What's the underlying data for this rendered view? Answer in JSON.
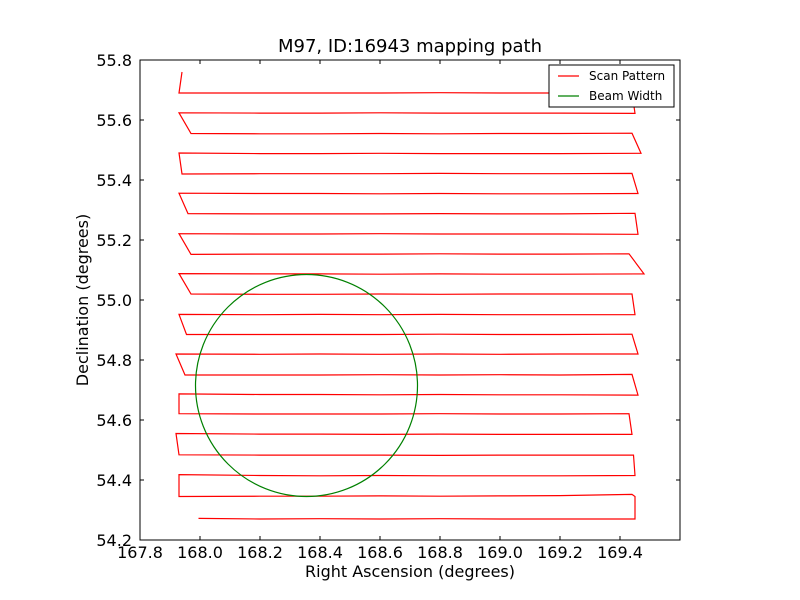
{
  "chart_data": {
    "type": "line",
    "title": "M97, ID:16943 mapping path",
    "xlabel": "Right Ascension (degrees)",
    "ylabel": "Declination (degrees)",
    "xlim": [
      167.8,
      169.6
    ],
    "ylim": [
      54.2,
      55.8
    ],
    "x_ticks": [
      "167.8",
      "168.0",
      "168.2",
      "168.4",
      "168.6",
      "168.8",
      "169.0",
      "169.2",
      "169.4"
    ],
    "y_ticks": [
      "54.2",
      "54.4",
      "54.6",
      "54.8",
      "55.0",
      "55.2",
      "55.4",
      "55.6",
      "55.8"
    ],
    "grid": false,
    "legend_position": "top-right",
    "series": [
      {
        "name": "Scan Pattern",
        "color": "#ff0000",
        "kind": "line",
        "x": [
          167.995,
          168.2,
          168.4,
          168.6,
          168.8,
          169.0,
          169.2,
          169.45,
          169.45,
          169.44,
          169.2,
          169.0,
          168.8,
          168.6,
          168.4,
          168.2,
          167.93,
          167.93,
          168.2,
          168.4,
          168.6,
          168.8,
          169.0,
          169.2,
          169.45,
          169.445,
          169.2,
          169.0,
          168.8,
          168.6,
          168.4,
          168.2,
          167.93,
          167.92,
          168.2,
          168.4,
          168.6,
          168.8,
          169.0,
          169.2,
          169.44,
          169.43,
          169.2,
          169.0,
          168.8,
          168.6,
          168.4,
          168.2,
          167.93,
          167.93,
          168.2,
          168.4,
          168.6,
          168.8,
          169.0,
          169.2,
          169.46,
          169.44,
          169.2,
          169.0,
          168.8,
          168.6,
          168.4,
          168.2,
          167.95,
          167.92,
          168.2,
          168.4,
          168.6,
          168.8,
          169.0,
          169.2,
          169.46,
          169.44,
          169.2,
          169.0,
          168.8,
          168.6,
          168.4,
          168.2,
          167.955,
          167.93,
          168.2,
          168.4,
          168.6,
          168.8,
          169.0,
          169.2,
          169.45,
          169.44,
          169.2,
          169.0,
          168.8,
          168.6,
          168.4,
          168.2,
          167.97,
          167.93,
          168.2,
          168.4,
          168.6,
          168.8,
          169.0,
          169.2,
          169.48,
          169.43,
          169.2,
          169.0,
          168.8,
          168.6,
          168.4,
          168.2,
          167.97,
          167.93,
          168.2,
          168.4,
          168.6,
          168.8,
          169.0,
          169.2,
          169.46,
          169.45,
          169.2,
          169.0,
          168.8,
          168.6,
          168.4,
          168.2,
          167.96,
          167.93,
          168.2,
          168.4,
          168.6,
          168.8,
          169.0,
          169.2,
          169.46,
          169.44,
          169.2,
          169.0,
          168.8,
          168.6,
          168.4,
          168.2,
          167.94,
          167.93,
          168.2,
          168.4,
          168.6,
          168.8,
          169.0,
          169.2,
          169.47,
          169.44,
          169.2,
          169.0,
          168.8,
          168.6,
          168.4,
          168.2,
          167.97,
          167.93,
          168.2,
          168.4,
          168.6,
          168.8,
          169.0,
          169.2,
          169.45,
          169.44,
          169.2,
          169.0,
          168.8,
          168.6,
          168.4,
          168.2,
          167.93,
          167.94
        ],
        "y": [
          54.272,
          54.27,
          54.271,
          54.27,
          54.271,
          54.27,
          54.27,
          54.27,
          54.345,
          54.352,
          54.348,
          54.347,
          54.346,
          54.347,
          54.346,
          54.346,
          54.345,
          54.418,
          54.415,
          54.414,
          54.415,
          54.414,
          54.414,
          54.414,
          54.415,
          54.483,
          54.483,
          54.483,
          54.482,
          54.483,
          54.483,
          54.483,
          54.484,
          54.555,
          54.553,
          54.553,
          54.552,
          54.553,
          54.552,
          54.552,
          54.552,
          54.621,
          54.62,
          54.62,
          54.621,
          54.62,
          54.62,
          54.62,
          54.621,
          54.687,
          54.685,
          54.685,
          54.684,
          54.685,
          54.684,
          54.684,
          54.683,
          54.752,
          54.75,
          54.751,
          54.75,
          54.751,
          54.75,
          54.75,
          54.75,
          54.82,
          54.819,
          54.82,
          54.819,
          54.82,
          54.819,
          54.82,
          54.82,
          54.886,
          54.885,
          54.885,
          54.886,
          54.885,
          54.885,
          54.885,
          54.885,
          54.952,
          54.951,
          54.952,
          54.951,
          54.952,
          54.951,
          54.951,
          54.951,
          55.02,
          55.02,
          55.02,
          55.019,
          55.02,
          55.019,
          55.019,
          55.02,
          55.088,
          55.087,
          55.087,
          55.086,
          55.087,
          55.086,
          55.086,
          55.087,
          55.154,
          55.153,
          55.153,
          55.154,
          55.153,
          55.153,
          55.153,
          55.152,
          55.221,
          55.22,
          55.22,
          55.221,
          55.22,
          55.22,
          55.22,
          55.219,
          55.289,
          55.287,
          55.287,
          55.288,
          55.287,
          55.287,
          55.287,
          55.288,
          55.356,
          55.355,
          55.355,
          55.354,
          55.355,
          55.354,
          55.354,
          55.355,
          55.422,
          55.421,
          55.421,
          55.422,
          55.421,
          55.421,
          55.421,
          55.42,
          55.49,
          55.488,
          55.488,
          55.489,
          55.488,
          55.488,
          55.488,
          55.489,
          55.556,
          55.555,
          55.555,
          55.554,
          55.555,
          55.554,
          55.554,
          55.555,
          55.624,
          55.623,
          55.623,
          55.624,
          55.623,
          55.623,
          55.623,
          55.622,
          55.692,
          55.69,
          55.69,
          55.691,
          55.69,
          55.69,
          55.69,
          55.69,
          55.76
        ]
      },
      {
        "name": "Beam Width",
        "color": "#008000",
        "kind": "circle",
        "center": [
          168.355,
          54.715
        ],
        "radius": 0.37
      }
    ]
  }
}
